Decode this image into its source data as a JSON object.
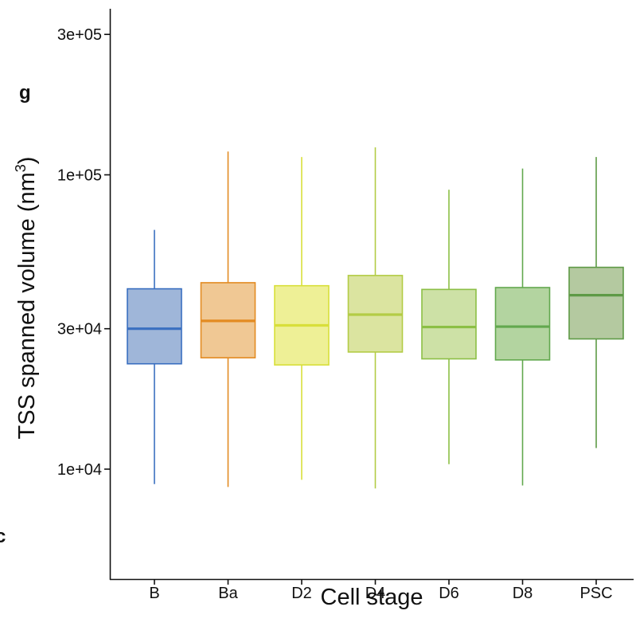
{
  "panel_letter": "g",
  "edge_fragment": "c",
  "chart_data": {
    "type": "box",
    "xlabel": "Cell stage",
    "ylabel_main": "TSS spanned volume (nm",
    "ylabel_sup": "3",
    "ylabel_close": ")",
    "yscale": "log10",
    "ylim": [
      5000,
      350000
    ],
    "yticks": [
      {
        "value": 10000,
        "label": "1e+04"
      },
      {
        "value": 30000,
        "label": "3e+04"
      },
      {
        "value": 100000,
        "label": "1e+05"
      },
      {
        "value": 300000,
        "label": "3e+05"
      }
    ],
    "grid": false,
    "categories": [
      "B",
      "Ba",
      "D2",
      "D4",
      "D6",
      "D8",
      "PSC"
    ],
    "boxes": [
      {
        "category": "B",
        "whisker_low": 8900,
        "q1": 22800,
        "median": 30000,
        "q3": 41000,
        "whisker_high": 65000,
        "fill": "#9fb6d9",
        "stroke": "#3a6fc0"
      },
      {
        "category": "Ba",
        "whisker_low": 8700,
        "q1": 23900,
        "median": 31900,
        "q3": 43000,
        "whisker_high": 120000,
        "fill": "#f0c894",
        "stroke": "#e38b22"
      },
      {
        "category": "D2",
        "whisker_low": 9200,
        "q1": 22600,
        "median": 30800,
        "q3": 42000,
        "whisker_high": 115000,
        "fill": "#eef096",
        "stroke": "#d8df3a"
      },
      {
        "category": "D4",
        "whisker_low": 8600,
        "q1": 25000,
        "median": 33500,
        "q3": 45500,
        "whisker_high": 124000,
        "fill": "#dbe4a0",
        "stroke": "#b3cc45"
      },
      {
        "category": "D6",
        "whisker_low": 10400,
        "q1": 23700,
        "median": 30400,
        "q3": 40800,
        "whisker_high": 89000,
        "fill": "#cde1a6",
        "stroke": "#8cbf45"
      },
      {
        "category": "D8",
        "whisker_low": 8800,
        "q1": 23500,
        "median": 30500,
        "q3": 41400,
        "whisker_high": 105000,
        "fill": "#b3d4a0",
        "stroke": "#62a84e"
      },
      {
        "category": "PSC",
        "whisker_low": 11800,
        "q1": 27700,
        "median": 39000,
        "q3": 48500,
        "whisker_high": 115000,
        "fill": "#b4c9a0",
        "stroke": "#5e9a46"
      }
    ]
  }
}
